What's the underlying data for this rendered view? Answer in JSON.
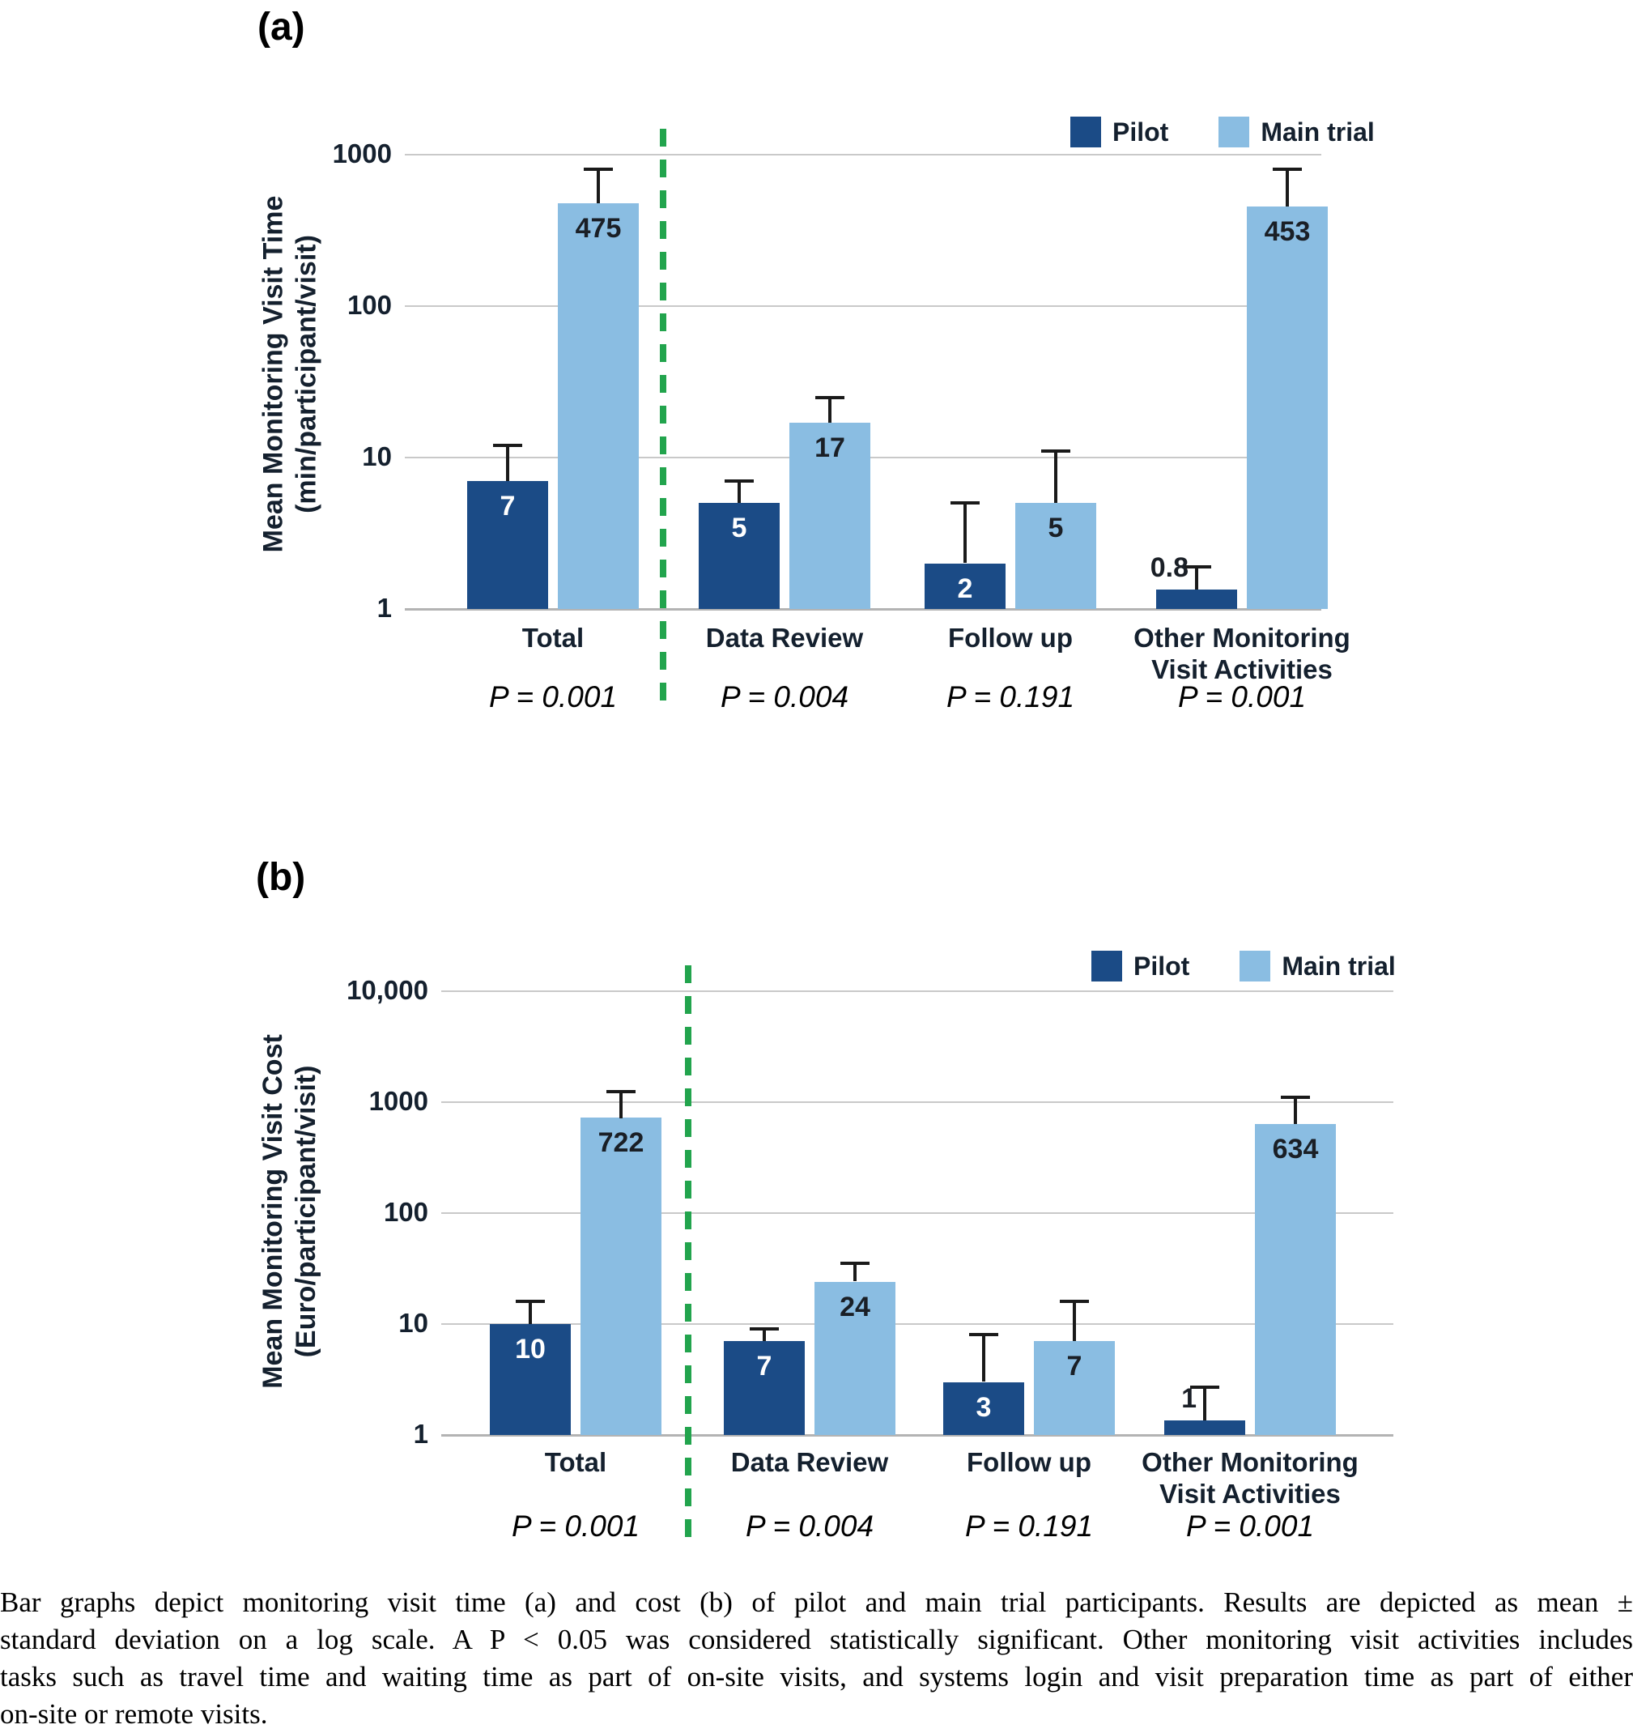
{
  "colors": {
    "pilot": "#1b4b86",
    "main_trial": "#8abde2",
    "divider_green": "#22a44d",
    "gridline": "#c9c9c9",
    "baseline": "#b3b3b3",
    "error_bar": "#1a1a1a"
  },
  "chart_data": [
    {
      "id": "a",
      "type": "bar",
      "panel_label": "(a)",
      "scale": "log10",
      "ylim": [
        1,
        1000
      ],
      "grid": true,
      "legend_position": "top-right",
      "legend": {
        "pilot": "Pilot",
        "main": "Main trial"
      },
      "ylabel_line1": "Mean Monitoring Visit Time",
      "ylabel_line2": "(min/participant/visit)",
      "yticks": [
        {
          "label": "1000",
          "value": 1000
        },
        {
          "label": "100",
          "value": 100
        },
        {
          "label": "10",
          "value": 10
        },
        {
          "label": "1",
          "value": 1
        }
      ],
      "categories": [
        "Total",
        "Data Review",
        "Follow up",
        "Other Monitoring|Visit Activities"
      ],
      "p_values": [
        "P = 0.001",
        "P = 0.004",
        "P = 0.191",
        "P = 0.001"
      ],
      "series": [
        {
          "name": "Pilot",
          "values": [
            7,
            5,
            2,
            0.8
          ],
          "value_labels": [
            "7",
            "5",
            "2",
            "0.8"
          ],
          "error_tops": [
            12,
            7,
            5,
            1.9
          ],
          "label_styles": [
            "inside",
            "inside",
            "inside",
            "above-left"
          ]
        },
        {
          "name": "Main trial",
          "values": [
            475,
            17,
            5,
            453
          ],
          "value_labels": [
            "475",
            "17",
            "5",
            "453"
          ],
          "error_tops": [
            800,
            25,
            11,
            800
          ],
          "label_styles": [
            "inside",
            "inside",
            "inside",
            "inside"
          ]
        }
      ]
    },
    {
      "id": "b",
      "type": "bar",
      "panel_label": "(b)",
      "scale": "log10",
      "ylim": [
        1,
        10000
      ],
      "grid": true,
      "legend_position": "top-right",
      "legend": {
        "pilot": "Pilot",
        "main": "Main trial"
      },
      "ylabel_line1": "Mean Monitoring Visit Cost",
      "ylabel_line2": "(Euro/participant/visit)",
      "yticks": [
        {
          "label": "10,000",
          "value": 10000
        },
        {
          "label": "1000",
          "value": 1000
        },
        {
          "label": "100",
          "value": 100
        },
        {
          "label": "10",
          "value": 10
        },
        {
          "label": "1",
          "value": 1
        }
      ],
      "categories": [
        "Total",
        "Data Review",
        "Follow up",
        "Other Monitoring|Visit Activities"
      ],
      "p_values": [
        "P = 0.001",
        "P = 0.004",
        "P = 0.191",
        "P = 0.001"
      ],
      "series": [
        {
          "name": "Pilot",
          "values": [
            10,
            7,
            3,
            1
          ],
          "value_labels": [
            "10",
            "7",
            "3",
            "1"
          ],
          "error_tops": [
            16,
            9,
            8,
            2.7
          ],
          "label_styles": [
            "inside",
            "inside",
            "inside",
            "above-left"
          ]
        },
        {
          "name": "Main trial",
          "values": [
            722,
            24,
            7,
            634
          ],
          "value_labels": [
            "722",
            "24",
            "7",
            "634"
          ],
          "error_tops": [
            1250,
            35,
            16,
            1100
          ],
          "label_styles": [
            "inside",
            "inside",
            "inside",
            "inside"
          ]
        }
      ]
    }
  ],
  "caption": {
    "lines": [
      "Bar graphs depict monitoring visit time (a) and cost (b) of pilot and main trial participants. Results are depicted as mean ±",
      "standard deviation on a log scale. A P < 0.05 was considered statistically significant. Other monitoring visit activities includes",
      "tasks such as travel time and waiting time as part of on-site visits, and systems login and visit preparation time as part of either",
      "on-site or remote visits."
    ]
  }
}
